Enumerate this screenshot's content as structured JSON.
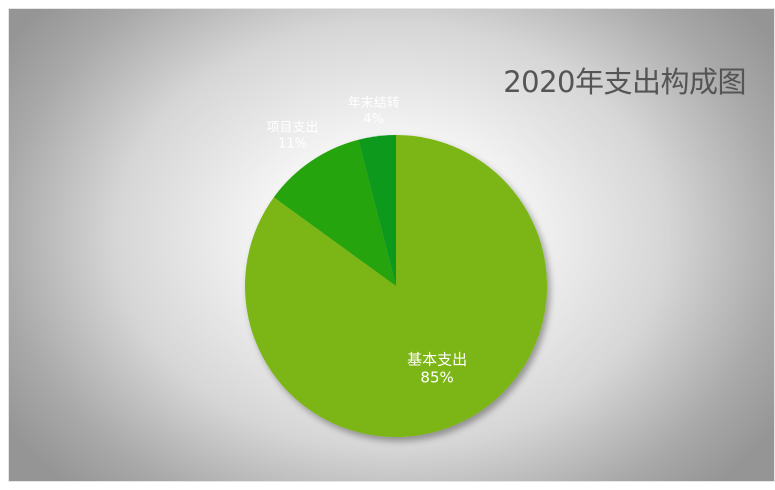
{
  "chart_data": {
    "type": "pie",
    "title": "2020年支出构成图",
    "slices": [
      {
        "label": "基本支出",
        "value": 85,
        "value_label": "85%",
        "color": "#7bb512"
      },
      {
        "label": "项目支出",
        "value": 11,
        "value_label": "11%",
        "color": "#28a40c"
      },
      {
        "label": "年末结转",
        "value": 4,
        "value_label": "4%",
        "color": "#0c9a1c"
      }
    ],
    "start": "12 o'clock",
    "direction": "clockwise",
    "legend": "none",
    "data_labels": "category and percentage",
    "background": "grey radial gradient"
  }
}
